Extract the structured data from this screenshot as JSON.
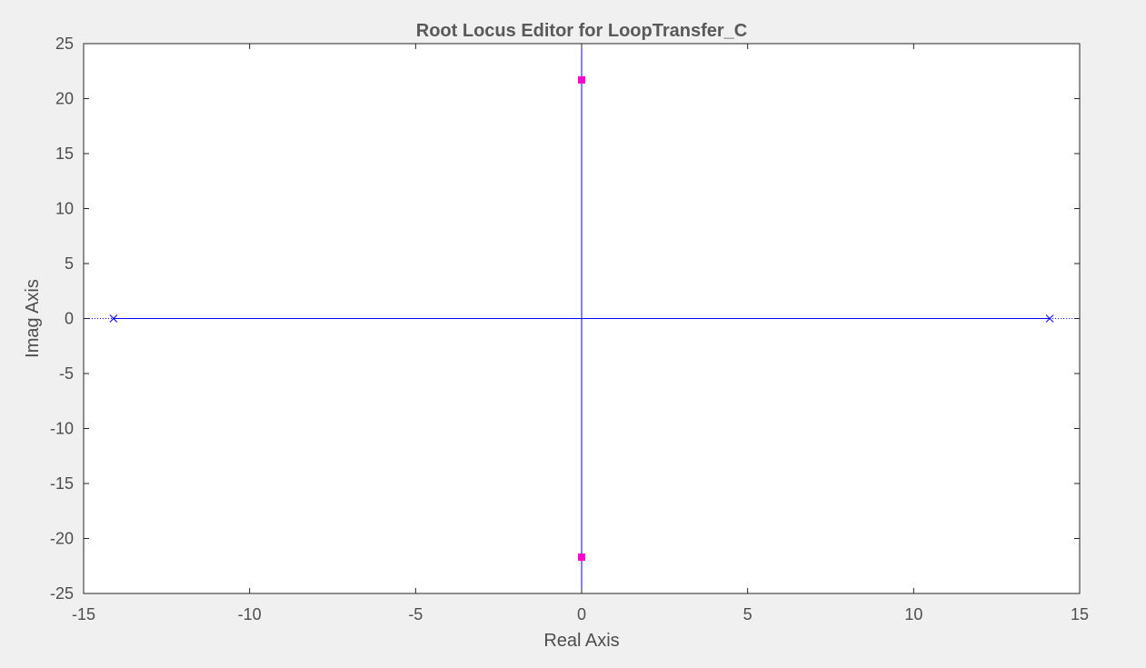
{
  "figure": {
    "background": "#f0f0f0"
  },
  "chart_data": {
    "type": "scatter",
    "title": "Root Locus Editor for LoopTransfer_C",
    "xlabel": "Real Axis",
    "ylabel": "Imag Axis",
    "xlim": [
      -15,
      15
    ],
    "ylim": [
      -25,
      25
    ],
    "xticks": [
      -15,
      -10,
      -5,
      0,
      5,
      10,
      15
    ],
    "xtick_labels": [
      "-15",
      "-10",
      "-5",
      "0",
      "5",
      "10",
      "15"
    ],
    "yticks": [
      25,
      20,
      15,
      10,
      5,
      0,
      -5,
      -10,
      -15,
      -20,
      -25
    ],
    "ytick_labels": [
      "25",
      "20",
      "15",
      "10",
      "5",
      "0",
      "-5",
      "-10",
      "-15",
      "-20",
      "-25"
    ],
    "grid": false,
    "locus_color": "#0000ff",
    "closed_loop_pole_color": "#ff00cc",
    "axis_color": "#262626",
    "text_color": "#4d4d4d",
    "title_color": "#595959",
    "series": [
      {
        "kind": "locus_branch",
        "points": [
          [
            -14.1,
            0
          ],
          [
            14.1,
            0
          ]
        ]
      },
      {
        "kind": "locus_branch",
        "points": [
          [
            0,
            -25
          ],
          [
            0,
            25
          ]
        ]
      },
      {
        "kind": "asymptote",
        "points": [
          [
            -15,
            0
          ],
          [
            -14.1,
            0
          ]
        ]
      },
      {
        "kind": "asymptote",
        "points": [
          [
            14.1,
            0
          ],
          [
            15,
            0
          ]
        ]
      },
      {
        "kind": "open_loop_poles",
        "marker": "x",
        "points": [
          [
            -14.1,
            0
          ],
          [
            14.1,
            0
          ]
        ]
      },
      {
        "kind": "closed_loop_poles",
        "marker": "square",
        "points": [
          [
            0,
            21.7
          ],
          [
            0,
            -21.7
          ]
        ]
      }
    ]
  }
}
